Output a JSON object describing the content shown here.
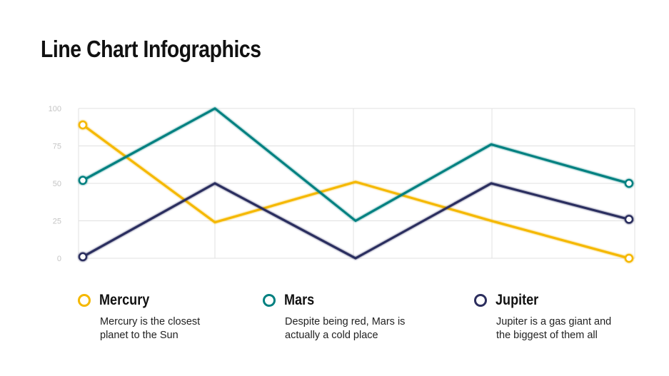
{
  "title": "Line Chart Infographics",
  "colors": {
    "mercury": "#f5b800",
    "mars": "#008080",
    "jupiter": "#2c2e5e",
    "grid": "#e0e0e0",
    "ticks": "#c4c4c4"
  },
  "legend": [
    {
      "name": "Mercury",
      "description_line1": "Mercury is the closest",
      "description_line2": "planet to the Sun"
    },
    {
      "name": "Mars",
      "description_line1": "Despite being red, Mars is",
      "description_line2": "actually a cold place"
    },
    {
      "name": "Jupiter",
      "description_line1": "Jupiter is a gas giant and",
      "description_line2": "the biggest of them all"
    }
  ],
  "y_ticks": [
    "100",
    "75",
    "50",
    "25",
    "0"
  ],
  "chart_data": {
    "type": "line",
    "title": "Line Chart Infographics",
    "x": [
      1,
      2,
      3,
      4,
      5
    ],
    "categories": [
      "",
      "",
      "",
      "",
      ""
    ],
    "series": [
      {
        "name": "Mercury",
        "color": "#f5b800",
        "values": [
          89,
          24,
          51,
          25,
          0
        ]
      },
      {
        "name": "Mars",
        "color": "#008080",
        "values": [
          52,
          100,
          25,
          76,
          50
        ]
      },
      {
        "name": "Jupiter",
        "color": "#2c2e5e",
        "values": [
          1,
          50,
          0,
          50,
          26
        ]
      }
    ],
    "xlabel": "",
    "ylabel": "",
    "ylim": [
      0,
      100
    ],
    "y_ticks": [
      0,
      25,
      50,
      75,
      100
    ],
    "grid": true,
    "legend_position": "bottom"
  }
}
